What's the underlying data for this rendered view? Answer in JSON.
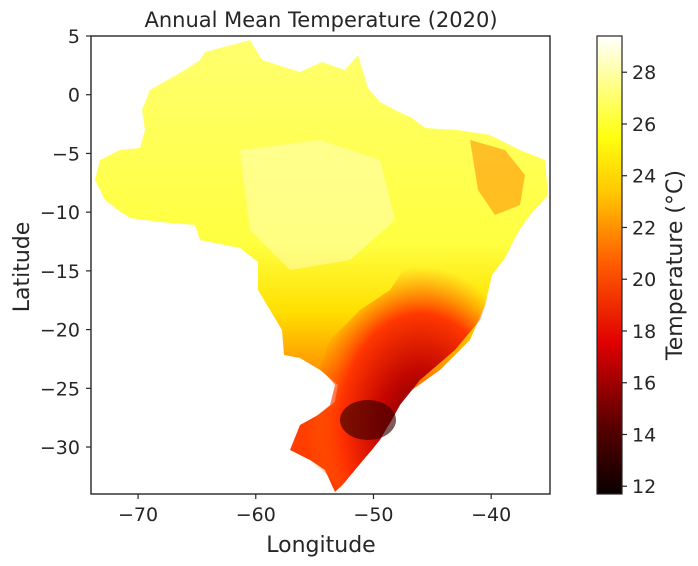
{
  "chart_data": {
    "type": "heatmap",
    "title": "Annual Mean Temperature (2020)",
    "xlabel": "Longitude",
    "ylabel": "Latitude",
    "xlim": [
      -74,
      -35
    ],
    "ylim": [
      -34,
      5
    ],
    "x_ticks": [
      -70,
      -60,
      -50,
      -40
    ],
    "x_tick_labels": [
      "−70",
      "−60",
      "−50",
      "−40"
    ],
    "y_ticks": [
      5,
      0,
      -5,
      -10,
      -15,
      -20,
      -25,
      -30
    ],
    "y_tick_labels": [
      "5",
      "0",
      "−5",
      "−10",
      "−15",
      "−20",
      "−25",
      "−30"
    ],
    "colorbar": {
      "label": "Temperature (°C)",
      "colormap": "hot",
      "range": [
        11.7,
        29.4
      ],
      "ticks": [
        12,
        14,
        16,
        18,
        20,
        22,
        24,
        26,
        28
      ],
      "tick_labels": [
        "12",
        "14",
        "16",
        "18",
        "20",
        "22",
        "24",
        "26",
        "28"
      ]
    },
    "grid": false,
    "region": "Brazil"
  }
}
